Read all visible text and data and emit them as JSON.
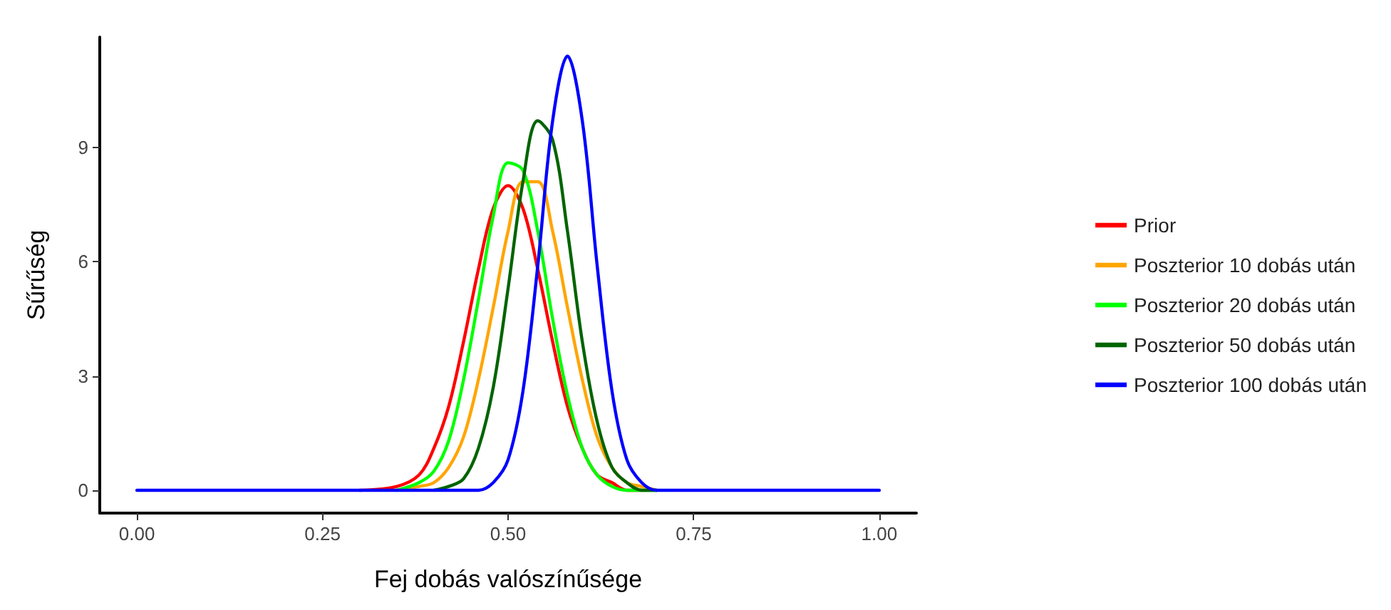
{
  "chart_data": {
    "type": "line",
    "xlabel": "Fej dobás valószínűsége",
    "ylabel": "Sűrűség",
    "x": [
      0,
      0.3,
      0.35,
      0.38,
      0.4,
      0.42,
      0.44,
      0.46,
      0.48,
      0.5,
      0.52,
      0.54,
      0.56,
      0.58,
      0.6,
      0.62,
      0.64,
      0.66,
      0.68,
      0.7,
      0.75,
      1.0
    ],
    "series": [
      {
        "name": "Prior",
        "color": "#ff0000",
        "values": [
          null,
          0,
          0.1,
          0.4,
          1.1,
          2.2,
          3.9,
          5.8,
          7.4,
          8.0,
          7.4,
          5.8,
          3.9,
          2.2,
          1.1,
          0.4,
          0.2,
          0,
          0,
          null,
          null,
          null
        ]
      },
      {
        "name": "Poszterior 10 dobás után",
        "color": "#ffa500",
        "values": [
          null,
          null,
          0,
          0.1,
          0.2,
          0.6,
          1.4,
          2.9,
          4.8,
          6.8,
          8.1,
          8.1,
          6.8,
          4.8,
          2.9,
          1.4,
          0.6,
          0.2,
          0.1,
          0,
          null,
          null
        ]
      },
      {
        "name": "Poszterior 20 dobás után",
        "color": "#00ff00",
        "values": [
          null,
          null,
          0,
          0.2,
          0.5,
          1.3,
          2.9,
          5.0,
          7.2,
          8.6,
          8.4,
          6.8,
          4.5,
          2.5,
          1.1,
          0.4,
          0.1,
          0,
          0,
          0,
          null,
          null
        ]
      },
      {
        "name": "Poszterior 50 dobás után",
        "color": "#006400",
        "values": [
          null,
          null,
          null,
          null,
          0,
          0.1,
          0.3,
          1.1,
          2.7,
          5.3,
          8.1,
          9.7,
          9.2,
          6.8,
          3.9,
          1.8,
          0.6,
          0.2,
          0,
          0,
          null,
          null
        ]
      },
      {
        "name": "Poszterior 100 dobás után",
        "color": "#0000ff",
        "values": [
          0,
          0,
          0,
          0,
          0,
          0,
          0,
          0,
          0.2,
          0.8,
          2.6,
          5.9,
          9.7,
          11.4,
          9.7,
          5.9,
          2.6,
          0.8,
          0.2,
          0,
          0,
          0
        ]
      }
    ],
    "xlim": [
      -0.05,
      1.05
    ],
    "xticks": [
      {
        "value": 0,
        "label": "0.00"
      },
      {
        "value": 0.25,
        "label": "0.25"
      },
      {
        "value": 0.5,
        "label": "0.50"
      },
      {
        "value": 0.75,
        "label": "0.75"
      },
      {
        "value": 1,
        "label": "1.00"
      }
    ],
    "ylim": [
      -0.6,
      11.9
    ],
    "yticks": [
      0,
      3,
      6,
      9
    ],
    "grid": false,
    "legend": "right",
    "marker": "none",
    "line_style": "solid"
  }
}
